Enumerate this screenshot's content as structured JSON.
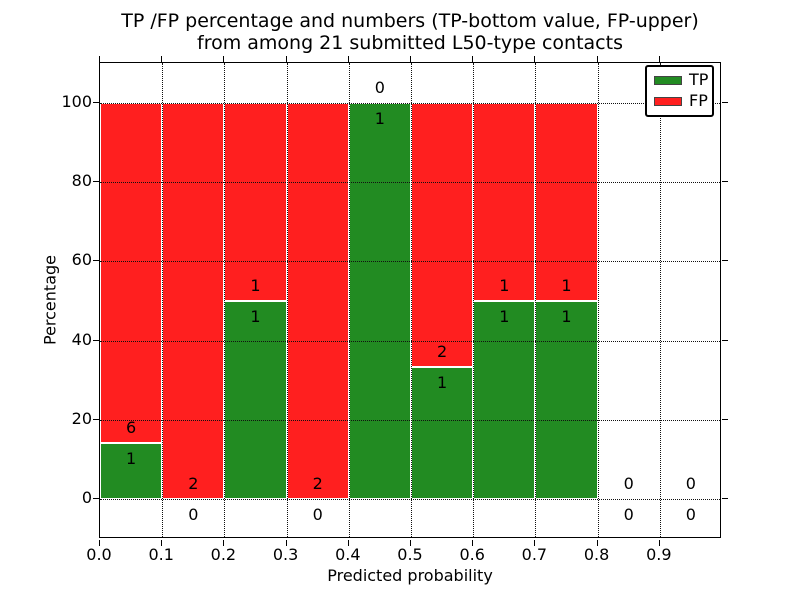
{
  "figure": {
    "title_line1": "TP /FP percentage and numbers (TP-bottom value, FP-upper)",
    "title_line2": "from among 21 submitted L50-type contacts",
    "total_contacts": 21
  },
  "chart_data": {
    "type": "bar",
    "stacked": true,
    "title": "TP /FP percentage and numbers (TP-bottom value, FP-upper) from among 21 submitted L50-type contacts",
    "xlabel": "Predicted probability",
    "ylabel": "Percentage",
    "xlim": [
      0.0,
      1.0
    ],
    "ylim": [
      -10,
      110
    ],
    "x_ticks": [
      "0.0",
      "0.1",
      "0.2",
      "0.3",
      "0.4",
      "0.5",
      "0.6",
      "0.7",
      "0.8",
      "0.9"
    ],
    "y_ticks": [
      0,
      20,
      40,
      60,
      80,
      100
    ],
    "grid": "dotted-black-above-bars",
    "legend_position": "upper right",
    "bin_edges": [
      0.0,
      0.1,
      0.2,
      0.3,
      0.4,
      0.5,
      0.6,
      0.7,
      0.8,
      0.9,
      1.0
    ],
    "series": [
      {
        "name": "TP",
        "color": "#228b22",
        "counts": [
          1,
          0,
          1,
          0,
          1,
          1,
          1,
          1,
          0,
          0
        ]
      },
      {
        "name": "FP",
        "color": "#ff1f1f",
        "counts": [
          6,
          2,
          1,
          2,
          0,
          2,
          1,
          1,
          0,
          0
        ]
      }
    ],
    "tp_percent_per_bin": [
      14.29,
      0,
      50,
      0,
      100,
      33.33,
      50,
      50,
      null,
      null
    ],
    "annotation_rule": "FP count printed above TP/FP boundary, TP count printed below it"
  },
  "colors": {
    "tp_green": "#228b22",
    "fp_red": "#ff1f1f",
    "grid": "#111111",
    "frame": "#000000",
    "text": "#000000",
    "background": "#ffffff"
  }
}
